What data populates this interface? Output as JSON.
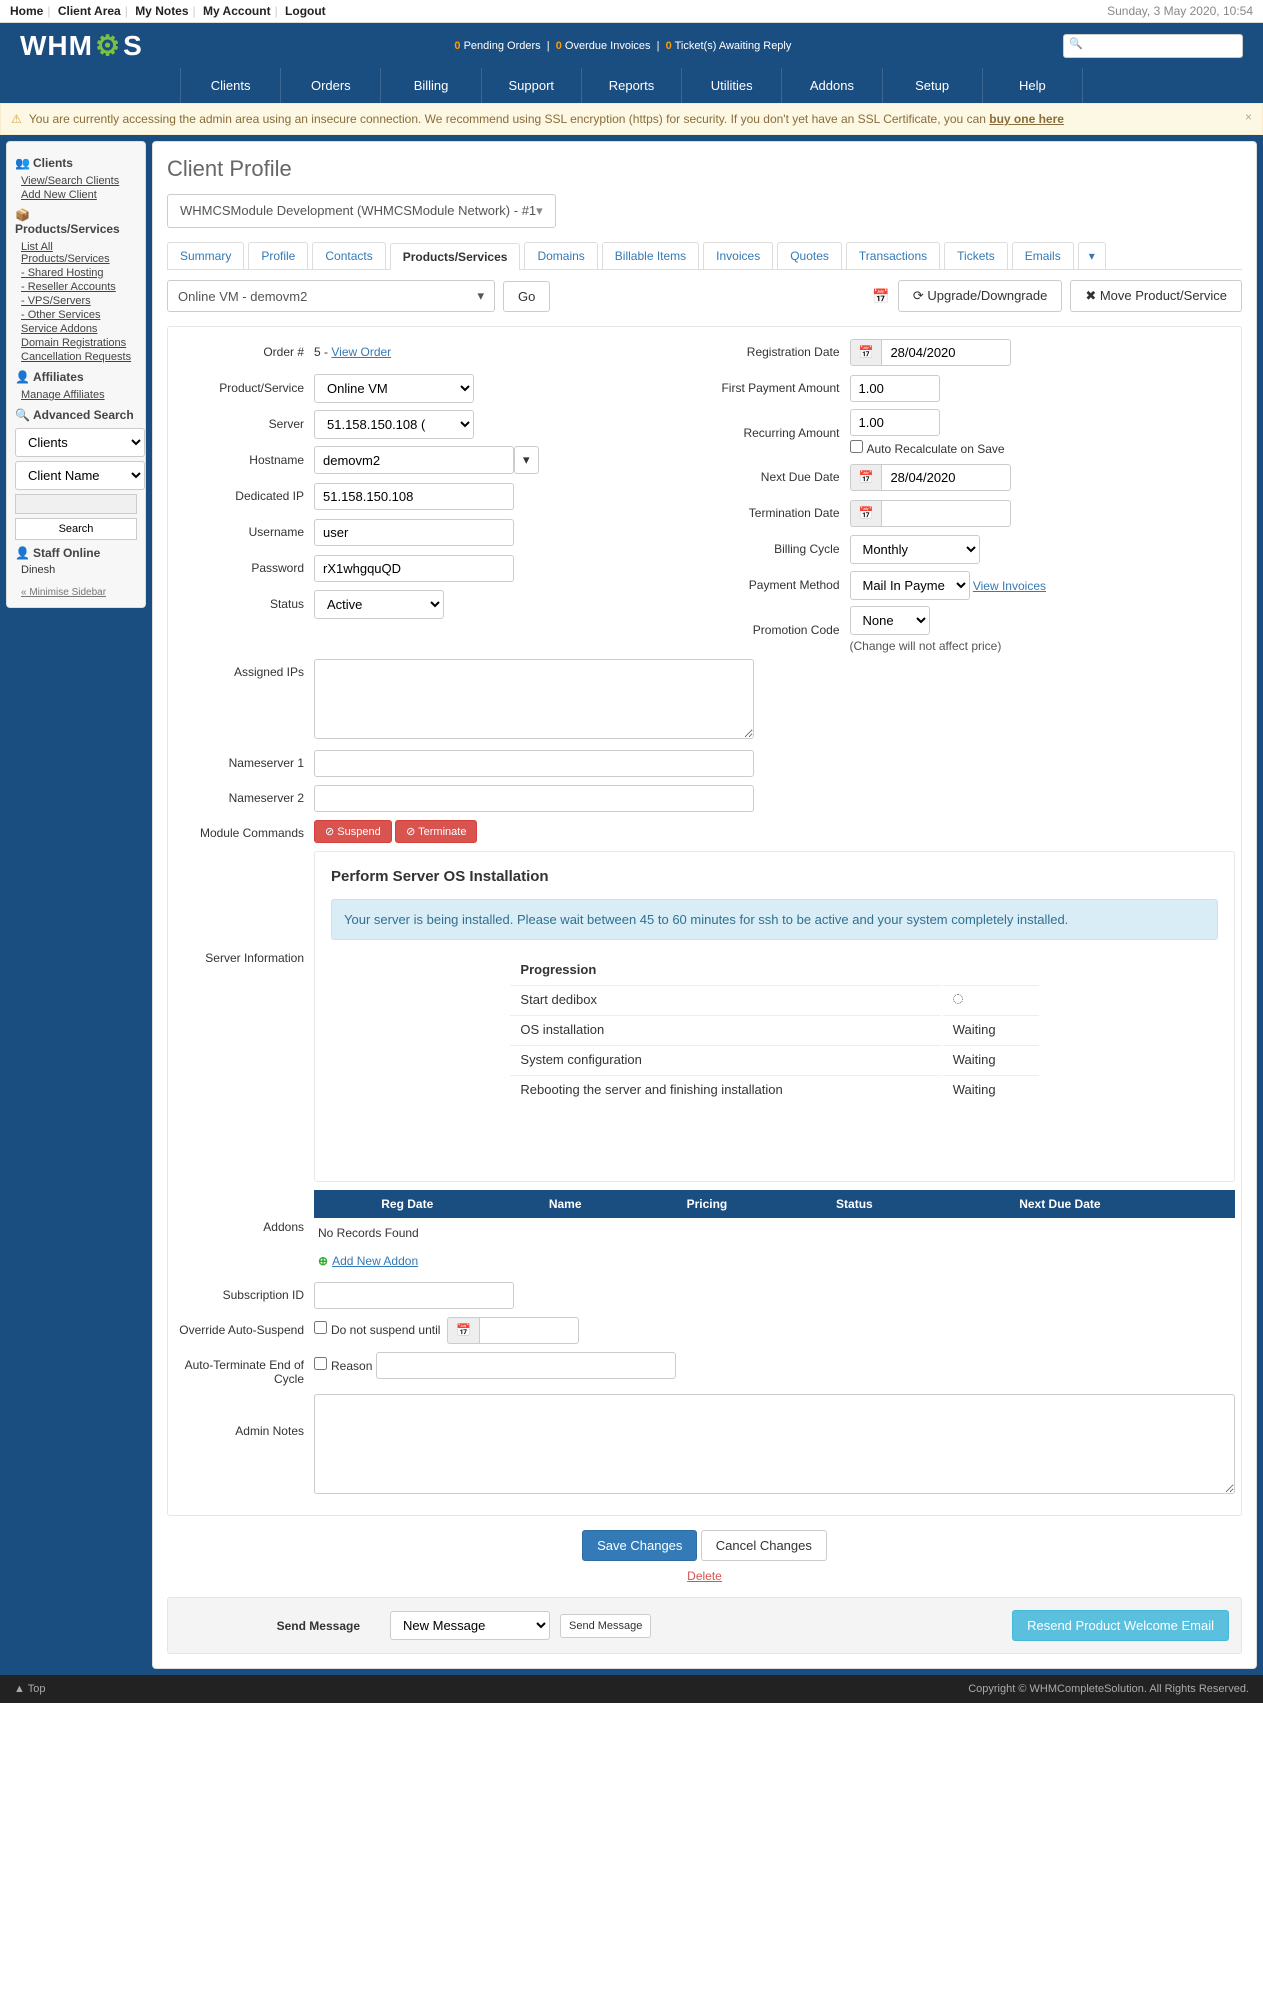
{
  "topbar": {
    "links": [
      "Home",
      "Client Area",
      "My Notes",
      "My Account",
      "Logout"
    ],
    "date": "Sunday, 3 May 2020, 10:54"
  },
  "logo_text": "WHMCS",
  "pending": {
    "orders": "0",
    "orders_lbl": "Pending Orders",
    "invoices": "0",
    "invoices_lbl": "Overdue Invoices",
    "tickets": "0",
    "tickets_lbl": "Ticket(s) Awaiting Reply"
  },
  "mainmenu": [
    "Clients",
    "Orders",
    "Billing",
    "Support",
    "Reports",
    "Utilities",
    "Addons",
    "Setup",
    "Help"
  ],
  "alert": {
    "text": "You are currently accessing the admin area using an insecure connection. We recommend using SSL encryption (https) for security. If you don't yet have an SSL Certificate, you can ",
    "link": "buy one here"
  },
  "sidebar": {
    "clients_h": "Clients",
    "clients": [
      "View/Search Clients",
      "Add New Client"
    ],
    "ps_h": "Products/Services",
    "ps": [
      "List All Products/Services",
      "- Shared Hosting",
      "- Reseller Accounts",
      "- VPS/Servers",
      "- Other Services",
      "Service Addons",
      "Domain Registrations",
      "Cancellation Requests"
    ],
    "aff_h": "Affiliates",
    "aff": [
      "Manage Affiliates"
    ],
    "adv_h": "Advanced Search",
    "adv_sel1": "Clients",
    "adv_sel2": "Client Name",
    "adv_btn": "Search",
    "staff_h": "Staff Online",
    "staff": "Dinesh",
    "min": "« Minimise Sidebar"
  },
  "page_title": "Client Profile",
  "client_selector": "WHMCSModule Development (WHMCSModule Network) - #1",
  "tabs": [
    "Summary",
    "Profile",
    "Contacts",
    "Products/Services",
    "Domains",
    "Billable Items",
    "Invoices",
    "Quotes",
    "Transactions",
    "Tickets",
    "Emails"
  ],
  "active_tab": 3,
  "service_selector": "Online VM - demovm2",
  "go_btn": "Go",
  "updown_btn": "Upgrade/Downgrade",
  "move_btn": "Move Product/Service",
  "left": {
    "order_lbl": "Order #",
    "order_num": "5",
    "order_link": "View Order",
    "product_lbl": "Product/Service",
    "product": "Online VM",
    "server_lbl": "Server",
    "server": "51.158.150.108 (",
    "hostname_lbl": "Hostname",
    "hostname": "demovm2",
    "dedip_lbl": "Dedicated IP",
    "dedip": "51.158.150.108",
    "user_lbl": "Username",
    "user": "user",
    "pass_lbl": "Password",
    "pass": "rX1whgquQD",
    "status_lbl": "Status",
    "status": "Active"
  },
  "right": {
    "regdate_lbl": "Registration Date",
    "regdate": "28/04/2020",
    "firstpay_lbl": "First Payment Amount",
    "firstpay": "1.00",
    "recur_lbl": "Recurring Amount",
    "recur": "1.00",
    "autorecalc": "Auto Recalculate on Save",
    "nextdue_lbl": "Next Due Date",
    "nextdue": "28/04/2020",
    "term_lbl": "Termination Date",
    "term": "",
    "cycle_lbl": "Billing Cycle",
    "cycle": "Monthly",
    "paymethod_lbl": "Payment Method",
    "paymethod": "Mail In Payment",
    "viewinv": "View Invoices",
    "promo_lbl": "Promotion Code",
    "promo": "None",
    "promo_note": "(Change will not affect price)"
  },
  "wide": {
    "assignedips_lbl": "Assigned IPs",
    "ns1_lbl": "Nameserver 1",
    "ns2_lbl": "Nameserver 2",
    "modcmd_lbl": "Module Commands",
    "suspend_btn": "Suspend",
    "terminate_btn": "Terminate",
    "srvinfo_lbl": "Server Information",
    "addons_lbl": "Addons",
    "subid_lbl": "Subscription ID",
    "override_lbl": "Override Auto-Suspend",
    "override_chk": "Do not suspend until",
    "autoterm_lbl": "Auto-Terminate End of Cycle",
    "autoterm_chk": "Reason",
    "notes_lbl": "Admin Notes"
  },
  "srv": {
    "title": "Perform Server OS Installation",
    "msg": "Your server is being installed. Please wait between 45 to 60 minutes for ssh to be active and your system completely installed.",
    "prog_h": "Progression",
    "steps": [
      {
        "name": "Start dedibox",
        "status": "⟳"
      },
      {
        "name": "OS installation",
        "status": "Waiting"
      },
      {
        "name": "System configuration",
        "status": "Waiting"
      },
      {
        "name": "Rebooting the server and finishing installation",
        "status": "Waiting"
      }
    ]
  },
  "addons": {
    "cols": [
      "Reg Date",
      "Name",
      "Pricing",
      "Status",
      "Next Due Date"
    ],
    "empty": "No Records Found",
    "add_link": "Add New Addon"
  },
  "actions": {
    "save": "Save Changes",
    "cancel": "Cancel Changes",
    "delete": "Delete"
  },
  "sendmsg": {
    "lbl": "Send Message",
    "sel": "New Message",
    "btn": "Send Message",
    "resend": "Resend Product Welcome Email"
  },
  "footer": {
    "top": "▲ Top",
    "copy": "Copyright © WHMCompleteSolution. All Rights Reserved."
  }
}
